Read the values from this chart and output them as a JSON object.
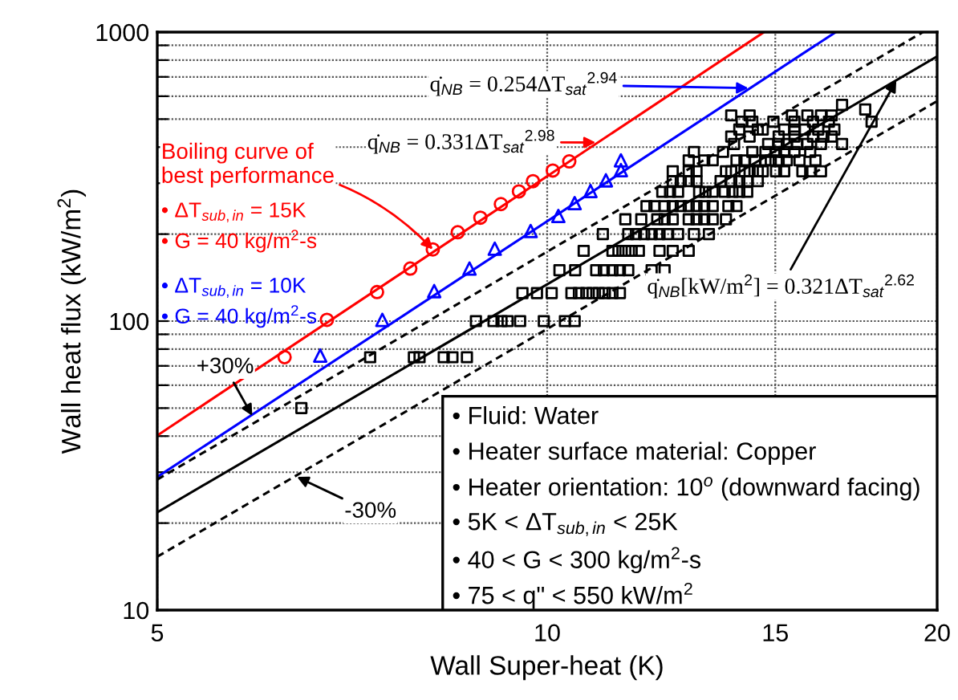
{
  "chart_data": {
    "type": "scatter",
    "xlabel": "Wall Super-heat (K)",
    "ylabel": "Wall heat flux (kW/m$^{2}$)",
    "log": "xy",
    "xlim": [
      5,
      20
    ],
    "ylim": [
      10,
      1000
    ],
    "xticks": [
      5,
      10,
      15,
      20
    ],
    "yticks": [
      10,
      {
        "value": 20,
        "label": null
      },
      {
        "value": 30,
        "label": null
      },
      {
        "value": 40,
        "label": null
      },
      {
        "value": 50,
        "label": null
      },
      {
        "value": 60,
        "label": null
      },
      {
        "value": 70,
        "label": null
      },
      {
        "value": 80,
        "label": null
      },
      {
        "value": 90,
        "label": null
      },
      100,
      {
        "value": 200,
        "label": null
      },
      {
        "value": 300,
        "label": null
      },
      {
        "value": 400,
        "label": null
      },
      {
        "value": 500,
        "label": null
      },
      {
        "value": 600,
        "label": null
      },
      {
        "value": 700,
        "label": null
      },
      {
        "value": 800,
        "label": null
      },
      {
        "value": 900,
        "label": null
      },
      1000
    ],
    "grid": true,
    "legend": false,
    "series": [
      {
        "type": "scatter",
        "name": "• ΔT$_{sub,in}$ = 15K\n• G = 40 kg/m$^{2}$-s",
        "color": "#ff0000",
        "marker": "circle",
        "x": [
          6.27,
          6.76,
          7.39,
          7.84,
          8.16,
          8.53,
          8.88,
          9.21,
          9.51,
          9.75,
          10.1,
          10.4
        ],
        "values": [
          75,
          101,
          126,
          152,
          177,
          203,
          228,
          254,
          281,
          305,
          332,
          357
        ]
      },
      {
        "type": "scatter",
        "name": "• ΔT$_{sub,in}$ = 10K\n• G = 40 kg/m$^{2}$-s",
        "color": "#0000ff",
        "marker": "triangle",
        "x": [
          6.68,
          7.46,
          8.18,
          8.71,
          9.11,
          9.71,
          10.2,
          10.5,
          10.8,
          11.1,
          11.4,
          11.4
        ],
        "values": [
          76,
          101,
          127,
          152,
          178,
          205,
          231,
          256,
          282,
          307,
          333,
          360
        ]
      },
      {
        "type": "scatter",
        "color": "#000000",
        "marker": "square",
        "x": [
          6.46,
          7.3,
          7.89,
          7.97,
          8.32,
          8.45,
          8.67,
          8.81,
          9.09,
          9.22,
          9.32,
          9.53,
          9.94,
          10.32,
          10.5,
          9.57,
          9.82,
          10.08,
          10.44,
          10.58,
          10.72,
          10.84,
          10.96,
          11.08,
          11.23,
          11.38,
          10.22,
          10.51,
          10.91,
          11.06,
          11.23,
          11.38,
          11.55,
          12.04,
          12.32,
          10.67,
          11.23,
          11.35,
          11.49,
          11.62,
          11.77,
          12.21,
          12.5,
          12.86,
          11.04,
          11.55,
          11.71,
          11.88,
          12.04,
          12.21,
          12.38,
          12.62,
          12.98,
          13.33,
          11.49,
          11.82,
          12.16,
          12.32,
          12.5,
          12.86,
          13.04,
          13.22,
          13.42,
          13.74,
          11.93,
          12.1,
          12.32,
          12.5,
          12.68,
          12.86,
          13.04,
          13.22,
          13.42,
          13.8,
          14.0,
          12.27,
          12.44,
          12.62,
          13.1,
          13.25,
          13.42,
          13.71,
          13.9,
          14.07,
          14.27,
          12.5,
          12.68,
          12.86,
          13.04,
          13.61,
          13.87,
          14.07,
          14.27,
          14.54,
          12.5,
          12.86,
          13.04,
          13.74,
          13.87,
          14.2,
          14.33,
          14.54,
          14.67,
          15.02,
          15.24,
          15.74,
          15.96,
          16.27,
          12.86,
          13.22,
          13.42,
          14.0,
          14.2,
          14.47,
          14.74,
          14.88,
          15.09,
          15.31,
          15.66,
          16.11,
          12.98,
          13.67,
          14.4,
          14.74,
          15.02,
          15.24,
          15.52,
          15.96,
          13.94,
          14.81,
          15.09,
          15.31,
          15.59,
          15.88,
          16.27,
          16.89,
          13.87,
          14.33,
          15.09,
          15.52,
          16.04,
          16.34,
          16.58,
          14.07,
          14.54,
          14.67,
          15.24,
          15.52,
          15.81,
          16.19,
          16.66,
          14.13,
          14.4,
          14.95,
          15.52,
          16.04,
          16.5,
          17.8,
          13.87,
          14.33,
          15.45,
          15.88,
          16.27,
          16.58,
          17.6,
          16.89
        ],
        "values": [
          50,
          75,
          75,
          75,
          75,
          75,
          75,
          100,
          100,
          100,
          100,
          100,
          100,
          100,
          100,
          125,
          125,
          125,
          125,
          125,
          125,
          125,
          125,
          125,
          125,
          125,
          150,
          150,
          150,
          150,
          150,
          150,
          150,
          150,
          150,
          175,
          175,
          175,
          175,
          175,
          175,
          175,
          175,
          175,
          200,
          200,
          200,
          200,
          200,
          200,
          200,
          200,
          200,
          200,
          225,
          225,
          225,
          225,
          225,
          225,
          225,
          225,
          225,
          225,
          250,
          250,
          250,
          250,
          250,
          250,
          250,
          250,
          250,
          250,
          250,
          280,
          280,
          280,
          280,
          280,
          280,
          280,
          280,
          280,
          280,
          305,
          305,
          305,
          305,
          305,
          305,
          305,
          305,
          305,
          330,
          330,
          330,
          330,
          330,
          330,
          330,
          330,
          330,
          330,
          330,
          330,
          330,
          330,
          360,
          360,
          360,
          360,
          360,
          360,
          360,
          360,
          360,
          360,
          360,
          360,
          385,
          385,
          385,
          385,
          385,
          385,
          385,
          385,
          410,
          410,
          410,
          410,
          410,
          410,
          410,
          410,
          435,
          435,
          435,
          435,
          435,
          435,
          435,
          460,
          460,
          460,
          460,
          460,
          460,
          460,
          460,
          490,
          490,
          490,
          490,
          490,
          490,
          490,
          515,
          515,
          515,
          515,
          515,
          515,
          540,
          560
        ]
      },
      {
        "type": "line",
        "color": "#ff0000",
        "line_style": "solid",
        "x": [
          5,
          14.7
        ],
        "values": [
          40.2,
          1000
        ]
      },
      {
        "type": "line",
        "color": "#0000ff",
        "line_style": "solid",
        "x": [
          5,
          16.7
        ],
        "values": [
          28.9,
          1000
        ]
      },
      {
        "type": "line",
        "color": "#000000",
        "line_style": "solid",
        "x": [
          5,
          20
        ],
        "values": [
          21.8,
          824
        ]
      },
      {
        "type": "line",
        "color": "#000000",
        "line_style": "dashed",
        "x": [
          5,
          19.5
        ],
        "values": [
          28.3,
          1000
        ]
      },
      {
        "type": "line",
        "color": "#000000",
        "line_style": "dashed",
        "x": [
          5,
          20
        ],
        "values": [
          15.3,
          577
        ]
      }
    ],
    "annotations": [
      {
        "text": "q̇$_{NB}$ = 0.254ΔT$_{sat}$$^{2.94}$",
        "x": 14.3,
        "y": 640
      },
      {
        "text": "q̇$_{NB}$ = 0.331ΔT$_{sat}$$^{2.98}$",
        "x": 10.9,
        "y": 415
      },
      {
        "text": "q̇$_{NB}$[kW/m$^{2}$] = 0.321ΔT$_{sat}$$^{2.62}$",
        "x": 18.6,
        "y": 680
      },
      {
        "text": "Boiling curve of\nbest performance",
        "x": 8.16,
        "y": 177
      },
      {
        "text": "+30%",
        "x": 5.92,
        "y": 47
      },
      {
        "text": "-30%",
        "x": 6.41,
        "y": 28.9
      },
      "• Fluid: Water",
      "• Heater surface material: Copper",
      "• Heater orientation: 10$^{o}$ (downward facing)",
      "• 5K < ΔT$_{sub,in}$ < 25K",
      "• 40 < G < 300 kg/m$^{2}$-s",
      "• 75 < q\" < 550 kW/m$^{2}$"
    ]
  }
}
